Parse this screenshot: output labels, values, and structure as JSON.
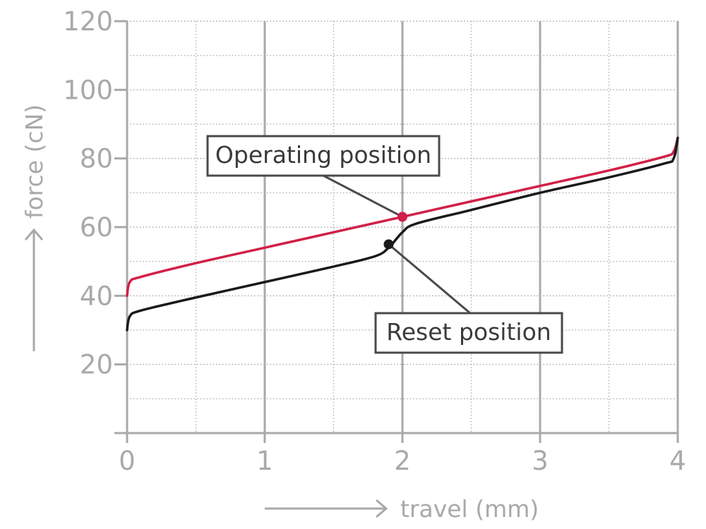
{
  "chart_data": {
    "type": "line",
    "xlabel": "travel (mm)",
    "ylabel": "force (cN)",
    "xlim": [
      0,
      4
    ],
    "ylim": [
      0,
      120
    ],
    "xticks": [
      "0",
      "1",
      "2",
      "3",
      "4"
    ],
    "yticks": [
      "20",
      "40",
      "60",
      "80",
      "100",
      "120"
    ],
    "grid": true,
    "series": [
      {
        "color": "#d21f47",
        "x": [
          0,
          0.02,
          0.1,
          0.5,
          1.0,
          1.5,
          2.0,
          2.5,
          3.0,
          3.5,
          3.9,
          3.97,
          4.0
        ],
        "y": [
          40,
          44,
          45.5,
          49.5,
          54,
          58.5,
          63,
          67.5,
          72,
          76.5,
          80.5,
          82,
          86
        ]
      },
      {
        "color": "#1a1a1a",
        "x": [
          0,
          0.02,
          0.1,
          0.5,
          1.0,
          1.5,
          1.8,
          1.9,
          2.0,
          2.1,
          2.5,
          3.0,
          3.5,
          3.9,
          3.97,
          4.0
        ],
        "y": [
          30,
          34,
          35.7,
          39.5,
          44,
          48.5,
          51.5,
          54,
          58.5,
          61,
          65,
          70,
          74.5,
          78.5,
          80,
          86
        ]
      }
    ],
    "annotations": [
      {
        "text": "Operating position",
        "x": 2.0,
        "y": 63,
        "color": "#d21f47"
      },
      {
        "text": "Reset position",
        "x": 1.9,
        "y": 55,
        "color": "#1a1a1a"
      }
    ]
  }
}
